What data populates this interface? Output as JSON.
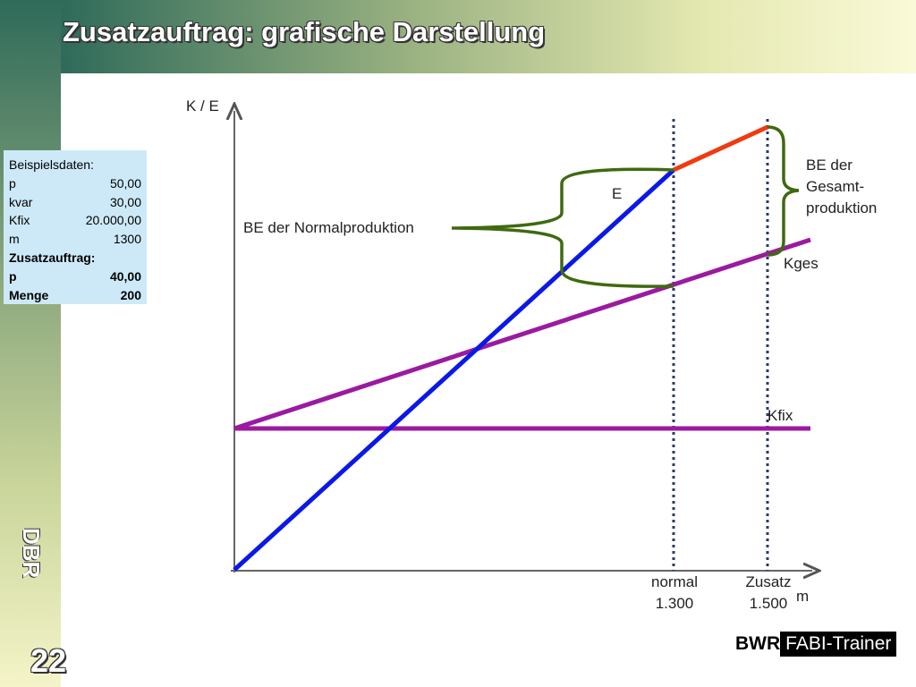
{
  "header": {
    "title": "Zusatzauftrag: grafische Darstellung"
  },
  "data_box": {
    "heading": "Beispielsdaten:",
    "rows": [
      [
        "p",
        "50,00"
      ],
      [
        "kvar",
        "30,00"
      ],
      [
        "Kfix",
        "20.000,00"
      ],
      [
        "m",
        "1300"
      ]
    ],
    "heading2": "Zusatzauftrag:",
    "rows2": [
      [
        "p",
        "40,00"
      ],
      [
        "Menge",
        "200"
      ]
    ]
  },
  "diagram": {
    "y_axis_label": "K / E",
    "x_axis_label": "m",
    "line_labels": {
      "revenue": "E",
      "total_cost": "Kges",
      "fixed_cost": "Kfix"
    },
    "brace_normal": "BE der Normalproduktion",
    "brace_total": [
      "BE der",
      "Gesamt-",
      "produktion"
    ],
    "marker_normal": [
      "normal",
      "1.300"
    ],
    "marker_extra": [
      "Zusatz",
      "1.500"
    ]
  },
  "footer": {
    "side_logo": "DBR",
    "page_number": "22",
    "brand": "BWR",
    "brand_box": "FABI-Trainer"
  }
}
